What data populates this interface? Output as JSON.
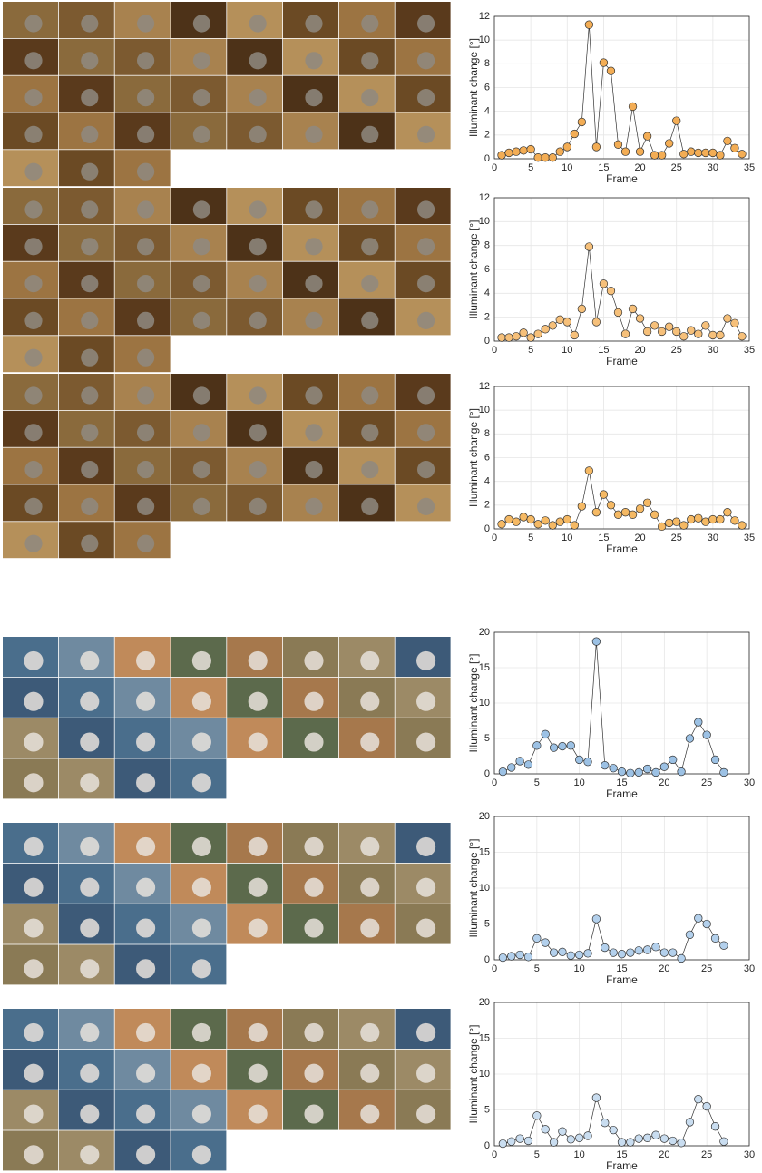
{
  "chart_data": [
    {
      "type": "line",
      "x_label": "Frame",
      "y_label": "Illuminant change [°]",
      "grid": true,
      "xlim": [
        0,
        35
      ],
      "xticks": [
        0,
        5,
        10,
        15,
        20,
        25,
        30,
        35
      ],
      "ylim": [
        0,
        12
      ],
      "yticks": [
        0,
        2,
        4,
        6,
        8,
        10,
        12
      ],
      "x": [
        1,
        2,
        3,
        4,
        5,
        6,
        7,
        8,
        9,
        10,
        11,
        12,
        13,
        14,
        15,
        16,
        17,
        18,
        19,
        20,
        21,
        22,
        23,
        24,
        25,
        26,
        27,
        28,
        29,
        30,
        31,
        32,
        33,
        34
      ],
      "series": [
        {
          "color": "#f3ad55",
          "values": [
            0.3,
            0.5,
            0.6,
            0.7,
            0.8,
            0.1,
            0.1,
            0.1,
            0.6,
            1.0,
            2.1,
            3.1,
            11.3,
            1.0,
            8.1,
            7.4,
            1.2,
            0.6,
            4.4,
            0.6,
            1.9,
            0.3,
            0.3,
            1.3,
            3.2,
            0.4,
            0.6,
            0.5,
            0.5,
            0.5,
            0.3,
            1.5,
            0.9,
            0.4
          ]
        }
      ]
    },
    {
      "type": "line",
      "x_label": "Frame",
      "y_label": "Illuminant change [°]",
      "grid": true,
      "xlim": [
        0,
        35
      ],
      "xticks": [
        0,
        5,
        10,
        15,
        20,
        25,
        30,
        35
      ],
      "ylim": [
        0,
        12
      ],
      "yticks": [
        0,
        2,
        4,
        6,
        8,
        10,
        12
      ],
      "x": [
        1,
        2,
        3,
        4,
        5,
        6,
        7,
        8,
        9,
        10,
        11,
        12,
        13,
        14,
        15,
        16,
        17,
        18,
        19,
        20,
        21,
        22,
        23,
        24,
        25,
        26,
        27,
        28,
        29,
        30,
        31,
        32,
        33,
        34
      ],
      "series": [
        {
          "color": "#f6c07a",
          "values": [
            0.3,
            0.3,
            0.4,
            0.7,
            0.3,
            0.6,
            1.0,
            1.3,
            1.8,
            1.6,
            0.5,
            2.7,
            7.9,
            1.6,
            4.8,
            4.2,
            2.4,
            0.6,
            2.7,
            1.9,
            0.8,
            1.3,
            0.8,
            1.2,
            0.8,
            0.4,
            0.9,
            0.6,
            1.3,
            0.5,
            0.5,
            1.9,
            1.5,
            0.4
          ]
        }
      ]
    },
    {
      "type": "line",
      "x_label": "Frame",
      "y_label": "Illuminant change [°]",
      "grid": true,
      "xlim": [
        0,
        35
      ],
      "xticks": [
        0,
        5,
        10,
        15,
        20,
        25,
        30,
        35
      ],
      "ylim": [
        0,
        12
      ],
      "yticks": [
        0,
        2,
        4,
        6,
        8,
        10,
        12
      ],
      "x": [
        1,
        2,
        3,
        4,
        5,
        6,
        7,
        8,
        9,
        10,
        11,
        12,
        13,
        14,
        15,
        16,
        17,
        18,
        19,
        20,
        21,
        22,
        23,
        24,
        25,
        26,
        27,
        28,
        29,
        30,
        31,
        32,
        33,
        34
      ],
      "series": [
        {
          "color": "#f5b964",
          "values": [
            0.4,
            0.8,
            0.6,
            1.0,
            0.8,
            0.4,
            0.7,
            0.3,
            0.6,
            0.8,
            0.3,
            1.9,
            4.9,
            1.4,
            2.9,
            2.0,
            1.2,
            1.4,
            1.2,
            1.7,
            2.2,
            1.2,
            0.2,
            0.5,
            0.6,
            0.3,
            0.8,
            0.9,
            0.6,
            0.8,
            0.8,
            1.4,
            0.7,
            0.3
          ]
        }
      ]
    },
    {
      "type": "line",
      "x_label": "Frame",
      "y_label": "Illuminant change [°]",
      "grid": true,
      "xlim": [
        0,
        30
      ],
      "xticks": [
        0,
        5,
        10,
        15,
        20,
        25,
        30
      ],
      "ylim": [
        0,
        20
      ],
      "yticks": [
        0,
        5,
        10,
        15,
        20
      ],
      "x": [
        1,
        2,
        3,
        4,
        5,
        6,
        7,
        8,
        9,
        10,
        11,
        12,
        13,
        14,
        15,
        16,
        17,
        18,
        19,
        20,
        21,
        22,
        23,
        24,
        25,
        26,
        27
      ],
      "series": [
        {
          "color": "#9cc1e4",
          "values": [
            0.3,
            0.9,
            1.8,
            1.3,
            4.0,
            5.6,
            3.7,
            3.9,
            4.0,
            2.0,
            1.7,
            18.7,
            1.2,
            0.8,
            0.3,
            0.1,
            0.2,
            0.7,
            0.2,
            1.0,
            2.0,
            0.3,
            5.0,
            7.3,
            5.5,
            2.0,
            0.2
          ]
        }
      ]
    },
    {
      "type": "line",
      "x_label": "Frame",
      "y_label": "Illuminant change [°]",
      "grid": true,
      "xlim": [
        0,
        30
      ],
      "xticks": [
        0,
        5,
        10,
        15,
        20,
        25,
        30
      ],
      "ylim": [
        0,
        20
      ],
      "yticks": [
        0,
        5,
        10,
        15,
        20
      ],
      "x": [
        1,
        2,
        3,
        4,
        5,
        6,
        7,
        8,
        9,
        10,
        11,
        12,
        13,
        14,
        15,
        16,
        17,
        18,
        19,
        20,
        21,
        22,
        23,
        24,
        25,
        26,
        27
      ],
      "series": [
        {
          "color": "#b3d0ec",
          "values": [
            0.3,
            0.5,
            0.7,
            0.4,
            3.0,
            2.4,
            1.0,
            1.1,
            0.6,
            0.7,
            0.9,
            5.7,
            1.7,
            1.0,
            0.8,
            1.0,
            1.3,
            1.4,
            1.8,
            1.0,
            1.0,
            0.2,
            3.5,
            5.8,
            5.0,
            3.0,
            2.0
          ]
        }
      ]
    },
    {
      "type": "line",
      "x_label": "Frame",
      "y_label": "Illuminant change [°]",
      "grid": true,
      "xlim": [
        0,
        30
      ],
      "xticks": [
        0,
        5,
        10,
        15,
        20,
        25,
        30
      ],
      "ylim": [
        0,
        20
      ],
      "yticks": [
        0,
        5,
        10,
        15,
        20
      ],
      "x": [
        1,
        2,
        3,
        4,
        5,
        6,
        7,
        8,
        9,
        10,
        11,
        12,
        13,
        14,
        15,
        16,
        17,
        18,
        19,
        20,
        21,
        22,
        23,
        24,
        25,
        26,
        27
      ],
      "series": [
        {
          "color": "#c9ddf0",
          "values": [
            0.3,
            0.6,
            1.0,
            0.7,
            4.2,
            2.3,
            0.5,
            2.0,
            0.9,
            1.1,
            1.4,
            6.7,
            3.2,
            2.2,
            0.5,
            0.5,
            1.0,
            1.1,
            1.5,
            1.0,
            0.7,
            0.4,
            3.3,
            6.5,
            5.5,
            2.7,
            0.6
          ]
        }
      ]
    }
  ]
}
